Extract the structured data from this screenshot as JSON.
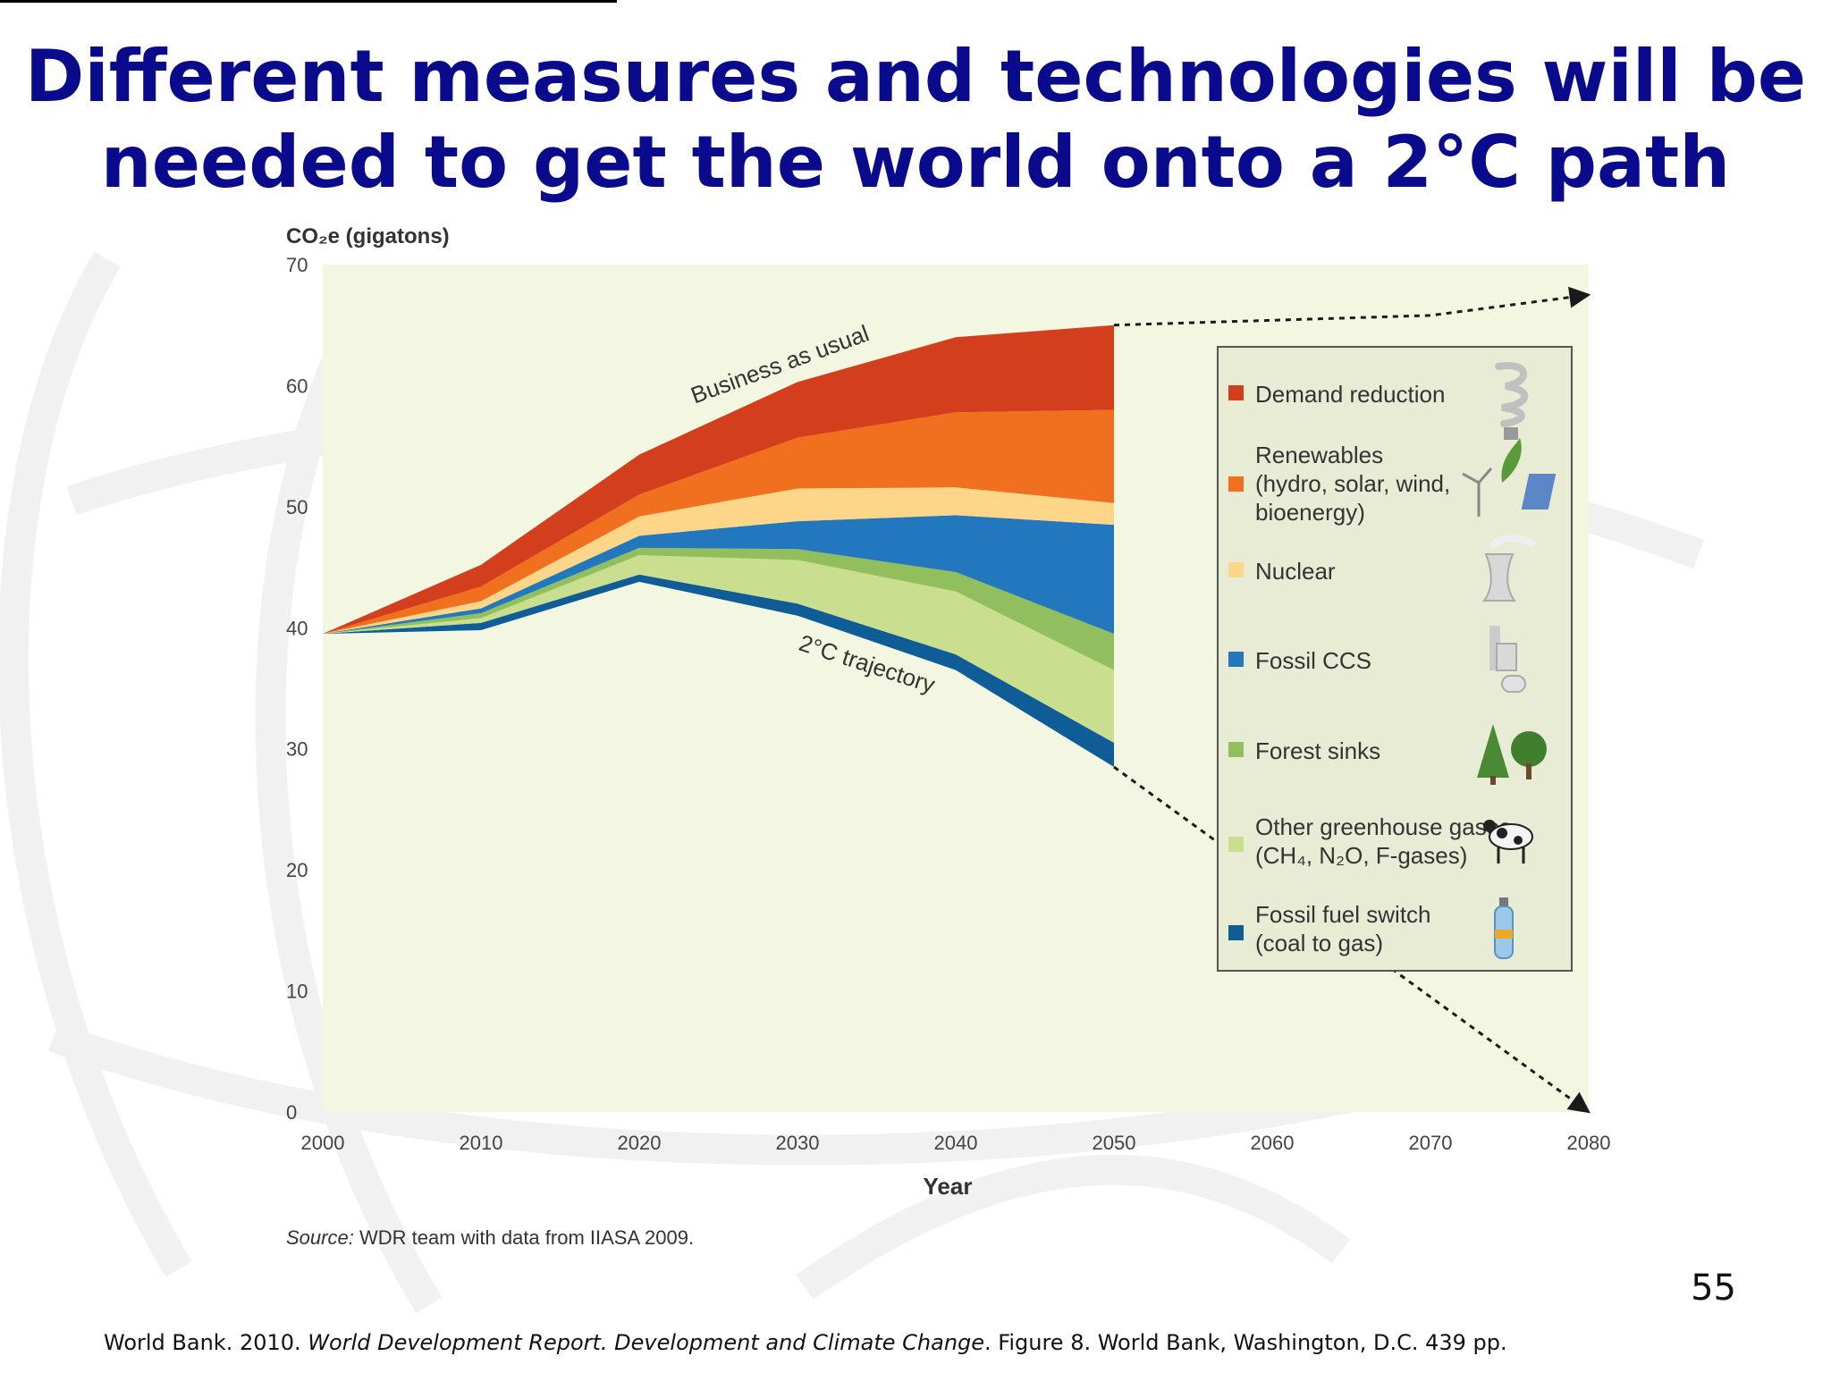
{
  "slide": {
    "title_line1": "Different measures and technologies will be",
    "title_line2": "needed to get the world onto a 2°C path",
    "page_number": "55",
    "citation": {
      "prefix": "World Bank. 2010. ",
      "title": "World Development Report. Development and Climate Change",
      "suffix": ". Figure 8. World Bank, Washington, D.C. 439 pp."
    }
  },
  "chart_data": {
    "type": "area",
    "ylabel": "CO₂e (gigatons)",
    "xlabel": "Year",
    "source_label": "Source:",
    "source_text": " WDR team with data from IIASA 2009.",
    "x_ticks": [
      2000,
      2010,
      2020,
      2030,
      2040,
      2050,
      2060,
      2070,
      2080
    ],
    "y_ticks": [
      0,
      10,
      20,
      30,
      40,
      50,
      60,
      70
    ],
    "xlim": [
      2000,
      2080
    ],
    "ylim": [
      0,
      70
    ],
    "x": [
      2000,
      2010,
      2020,
      2030,
      2040,
      2050
    ],
    "boundaries": [
      [
        39.5,
        39.8,
        43.8,
        41.0,
        36.5,
        28.5
      ],
      [
        39.5,
        40.4,
        44.4,
        42.0,
        37.8,
        30.5
      ],
      [
        39.5,
        40.8,
        46.0,
        45.6,
        43.0,
        36.5
      ],
      [
        39.5,
        41.2,
        46.6,
        46.5,
        44.6,
        39.5
      ],
      [
        39.5,
        41.6,
        47.6,
        48.8,
        49.3,
        48.5
      ],
      [
        39.5,
        42.2,
        49.2,
        51.5,
        51.6,
        50.3
      ],
      [
        39.5,
        43.4,
        51.0,
        55.7,
        57.8,
        58.0
      ],
      [
        39.5,
        45.2,
        54.3,
        60.3,
        64.0,
        65.0
      ]
    ],
    "series": [
      {
        "name": "Fossil fuel switch",
        "name_line2": "(coal to gas)",
        "color": "#0f5c97",
        "icon": "gas-cylinder-icon"
      },
      {
        "name": "Other greenhouse gases",
        "name_line2": "(CH₄, N₂O, F-gases)",
        "color": "#c9de8e",
        "icon": "cow-icon"
      },
      {
        "name": "Forest sinks",
        "color": "#91bf5e",
        "icon": "trees-icon"
      },
      {
        "name": "Fossil CCS",
        "color": "#2378bd",
        "icon": "factory-icon"
      },
      {
        "name": "Nuclear",
        "color": "#fdd68a",
        "icon": "cooling-tower-icon"
      },
      {
        "name": "Renewables",
        "name_line2": "(hydro, solar, wind,",
        "name_line3": "bioenergy)",
        "color": "#f07020",
        "icon": "wind-turbine-icon"
      },
      {
        "name": "Demand reduction",
        "color": "#d33f1c",
        "icon": "light-bulb-icon"
      }
    ],
    "annotations": [
      {
        "text": "Business as usual"
      },
      {
        "text": "2°C trajectory"
      }
    ],
    "projection": {
      "bau_2080": 67.5,
      "trajectory_2080": 0
    }
  }
}
